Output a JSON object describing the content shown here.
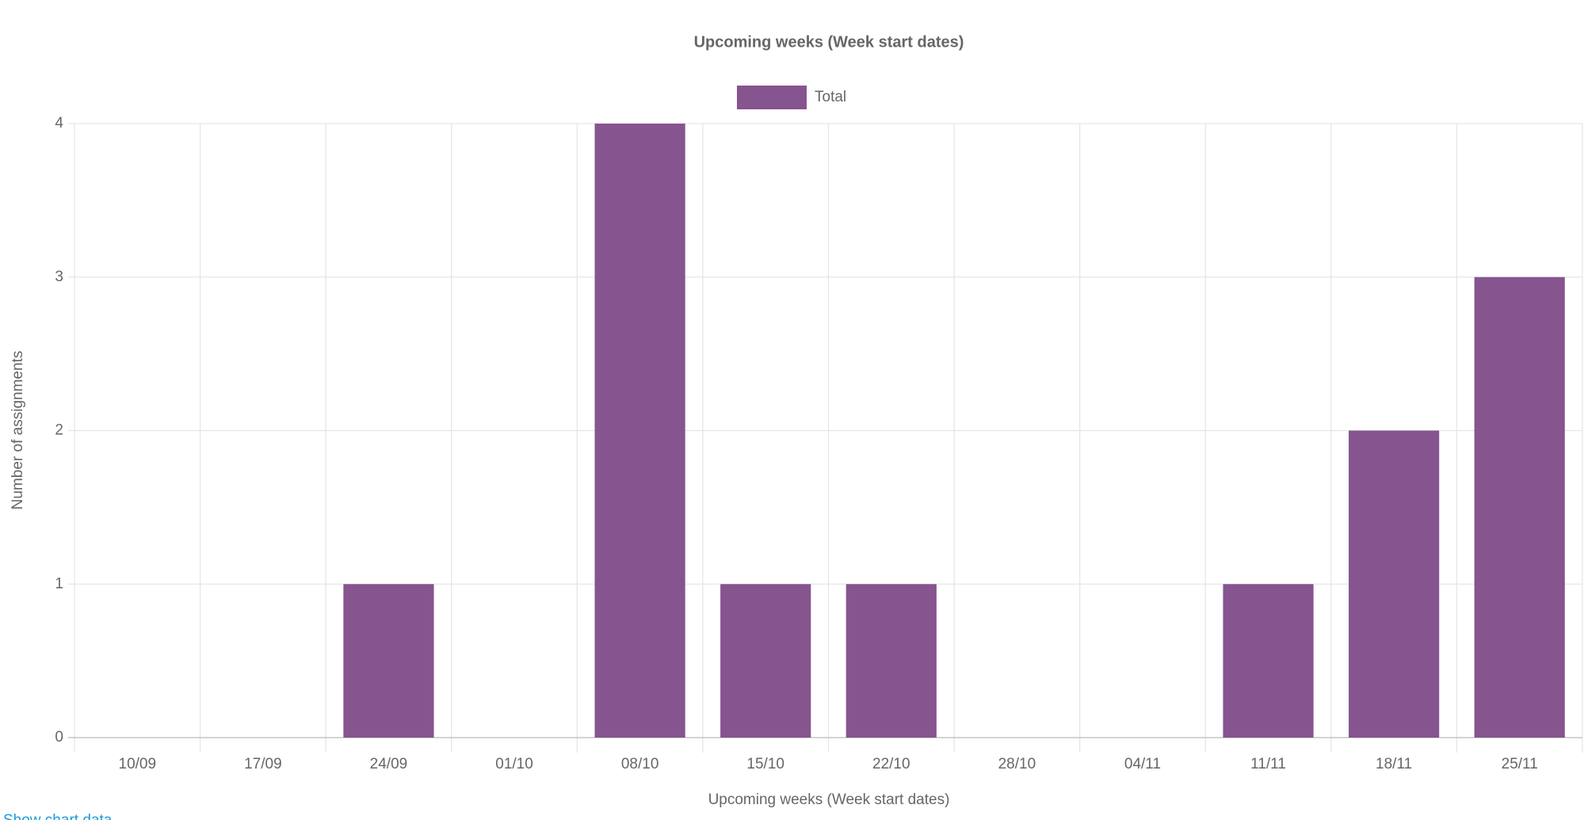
{
  "chart_data": {
    "type": "bar",
    "title": "Upcoming weeks (Week start dates)",
    "x_label": "Upcoming weeks (Week start dates)",
    "y_label": "Number of assignments",
    "categories": [
      "10/09",
      "17/09",
      "24/09",
      "01/10",
      "08/10",
      "15/10",
      "22/10",
      "28/10",
      "04/11",
      "11/11",
      "18/11",
      "25/11"
    ],
    "series": [
      {
        "name": "Total",
        "color": "#86548f",
        "values": [
          0,
          0,
          1,
          0,
          4,
          1,
          1,
          0,
          0,
          1,
          2,
          3
        ]
      }
    ],
    "ylim": [
      0,
      4
    ],
    "yticks": [
      0,
      1,
      2,
      3,
      4
    ],
    "grid": true,
    "legend": "top"
  },
  "link": "Show chart data"
}
